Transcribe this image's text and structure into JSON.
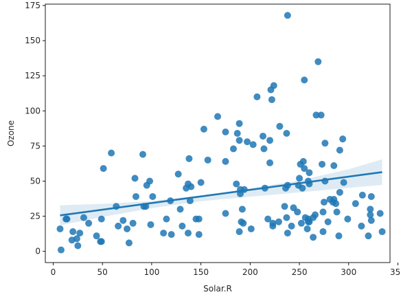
{
  "chart_data": {
    "type": "scatter",
    "title": "",
    "xlabel": "Solar.R",
    "ylabel": "Ozone",
    "xlim": [
      -8,
      342
    ],
    "ylim": [
      -8,
      176
    ],
    "xticks": [
      0,
      50,
      100,
      150,
      200,
      250,
      300,
      350
    ],
    "yticks": [
      0,
      25,
      50,
      75,
      100,
      125,
      150,
      175
    ],
    "grid": false,
    "legend": "none",
    "point_color": "#1f77b4",
    "points": [
      [
        7,
        16
      ],
      [
        8,
        1
      ],
      [
        13,
        23
      ],
      [
        14,
        23
      ],
      [
        19,
        8
      ],
      [
        20,
        14
      ],
      [
        24,
        9
      ],
      [
        25,
        4
      ],
      [
        27,
        13
      ],
      [
        31,
        24
      ],
      [
        36,
        20
      ],
      [
        44,
        11
      ],
      [
        48,
        7
      ],
      [
        49,
        23
      ],
      [
        49,
        7
      ],
      [
        51,
        59
      ],
      [
        59,
        70
      ],
      [
        64,
        32
      ],
      [
        66,
        18
      ],
      [
        71,
        22
      ],
      [
        75,
        16
      ],
      [
        77,
        6
      ],
      [
        81,
        20
      ],
      [
        83,
        52
      ],
      [
        84,
        39
      ],
      [
        91,
        69
      ],
      [
        92,
        32
      ],
      [
        94,
        32
      ],
      [
        95,
        47
      ],
      [
        98,
        50
      ],
      [
        99,
        19
      ],
      [
        101,
        39
      ],
      [
        112,
        13
      ],
      [
        115,
        23
      ],
      [
        119,
        36
      ],
      [
        120,
        12
      ],
      [
        127,
        55
      ],
      [
        129,
        30
      ],
      [
        131,
        18
      ],
      [
        135,
        45
      ],
      [
        137,
        48
      ],
      [
        137,
        13
      ],
      [
        138,
        66
      ],
      [
        139,
        36
      ],
      [
        140,
        46
      ],
      [
        145,
        23
      ],
      [
        148,
        12
      ],
      [
        148,
        23
      ],
      [
        150,
        49
      ],
      [
        153,
        87
      ],
      [
        157,
        65
      ],
      [
        167,
        96
      ],
      [
        175,
        27
      ],
      [
        175,
        64
      ],
      [
        175,
        85
      ],
      [
        183,
        73
      ],
      [
        186,
        48
      ],
      [
        187,
        84
      ],
      [
        189,
        91
      ],
      [
        189,
        79
      ],
      [
        189,
        14
      ],
      [
        190,
        44
      ],
      [
        190,
        41
      ],
      [
        191,
        21
      ],
      [
        192,
        30
      ],
      [
        193,
        20
      ],
      [
        194,
        44
      ],
      [
        197,
        78
      ],
      [
        201,
        16
      ],
      [
        203,
        76
      ],
      [
        207,
        110
      ],
      [
        213,
        82
      ],
      [
        214,
        73
      ],
      [
        215,
        45
      ],
      [
        218,
        23
      ],
      [
        220,
        63
      ],
      [
        220,
        79
      ],
      [
        221,
        115
      ],
      [
        222,
        108
      ],
      [
        223,
        20
      ],
      [
        223,
        18
      ],
      [
        224,
        118
      ],
      [
        229,
        21
      ],
      [
        230,
        89
      ],
      [
        235,
        32
      ],
      [
        236,
        45
      ],
      [
        237,
        84
      ],
      [
        237,
        24
      ],
      [
        238,
        13
      ],
      [
        238,
        47
      ],
      [
        238,
        168
      ],
      [
        242,
        18
      ],
      [
        244,
        31
      ],
      [
        248,
        28
      ],
      [
        249,
        47
      ],
      [
        250,
        52
      ],
      [
        251,
        62
      ],
      [
        252,
        20
      ],
      [
        253,
        45
      ],
      [
        254,
        64
      ],
      [
        255,
        59
      ],
      [
        255,
        122
      ],
      [
        256,
        24
      ],
      [
        258,
        16
      ],
      [
        259,
        50
      ],
      [
        259,
        23
      ],
      [
        259,
        21
      ],
      [
        260,
        56
      ],
      [
        260,
        48
      ],
      [
        260,
        21
      ],
      [
        264,
        24
      ],
      [
        264,
        10
      ],
      [
        266,
        26
      ],
      [
        267,
        97
      ],
      [
        269,
        135
      ],
      [
        272,
        97
      ],
      [
        273,
        62
      ],
      [
        274,
        28
      ],
      [
        274,
        14
      ],
      [
        275,
        35
      ],
      [
        276,
        50
      ],
      [
        276,
        77
      ],
      [
        279,
        21
      ],
      [
        281,
        37
      ],
      [
        284,
        35
      ],
      [
        285,
        37
      ],
      [
        285,
        61
      ],
      [
        287,
        34
      ],
      [
        288,
        28
      ],
      [
        290,
        11
      ],
      [
        291,
        72
      ],
      [
        291,
        42
      ],
      [
        294,
        80
      ],
      [
        295,
        49
      ],
      [
        299,
        23
      ],
      [
        307,
        34
      ],
      [
        313,
        18
      ],
      [
        314,
        40
      ],
      [
        320,
        11
      ],
      [
        322,
        30
      ],
      [
        322,
        26
      ],
      [
        323,
        39
      ],
      [
        323,
        22
      ],
      [
        332,
        27
      ],
      [
        334,
        14
      ]
    ],
    "regression": {
      "x_range": [
        7,
        334
      ],
      "line": [
        [
          7,
          25.6
        ],
        [
          334,
          56.4
        ]
      ],
      "ci_lower": [
        [
          7,
          18.5
        ],
        [
          50,
          24.5
        ],
        [
          100,
          30.8
        ],
        [
          150,
          35.6
        ],
        [
          170,
          37.0
        ],
        [
          200,
          38.9
        ],
        [
          250,
          42.0
        ],
        [
          300,
          45.2
        ],
        [
          334,
          47.3
        ]
      ],
      "ci_upper": [
        [
          7,
          32.8
        ],
        [
          50,
          33.8
        ],
        [
          100,
          35.8
        ],
        [
          150,
          39.9
        ],
        [
          170,
          41.7
        ],
        [
          200,
          44.9
        ],
        [
          250,
          50.5
        ],
        [
          300,
          58.4
        ],
        [
          334,
          65.5
        ]
      ],
      "line_color": "#1f77b4"
    }
  }
}
